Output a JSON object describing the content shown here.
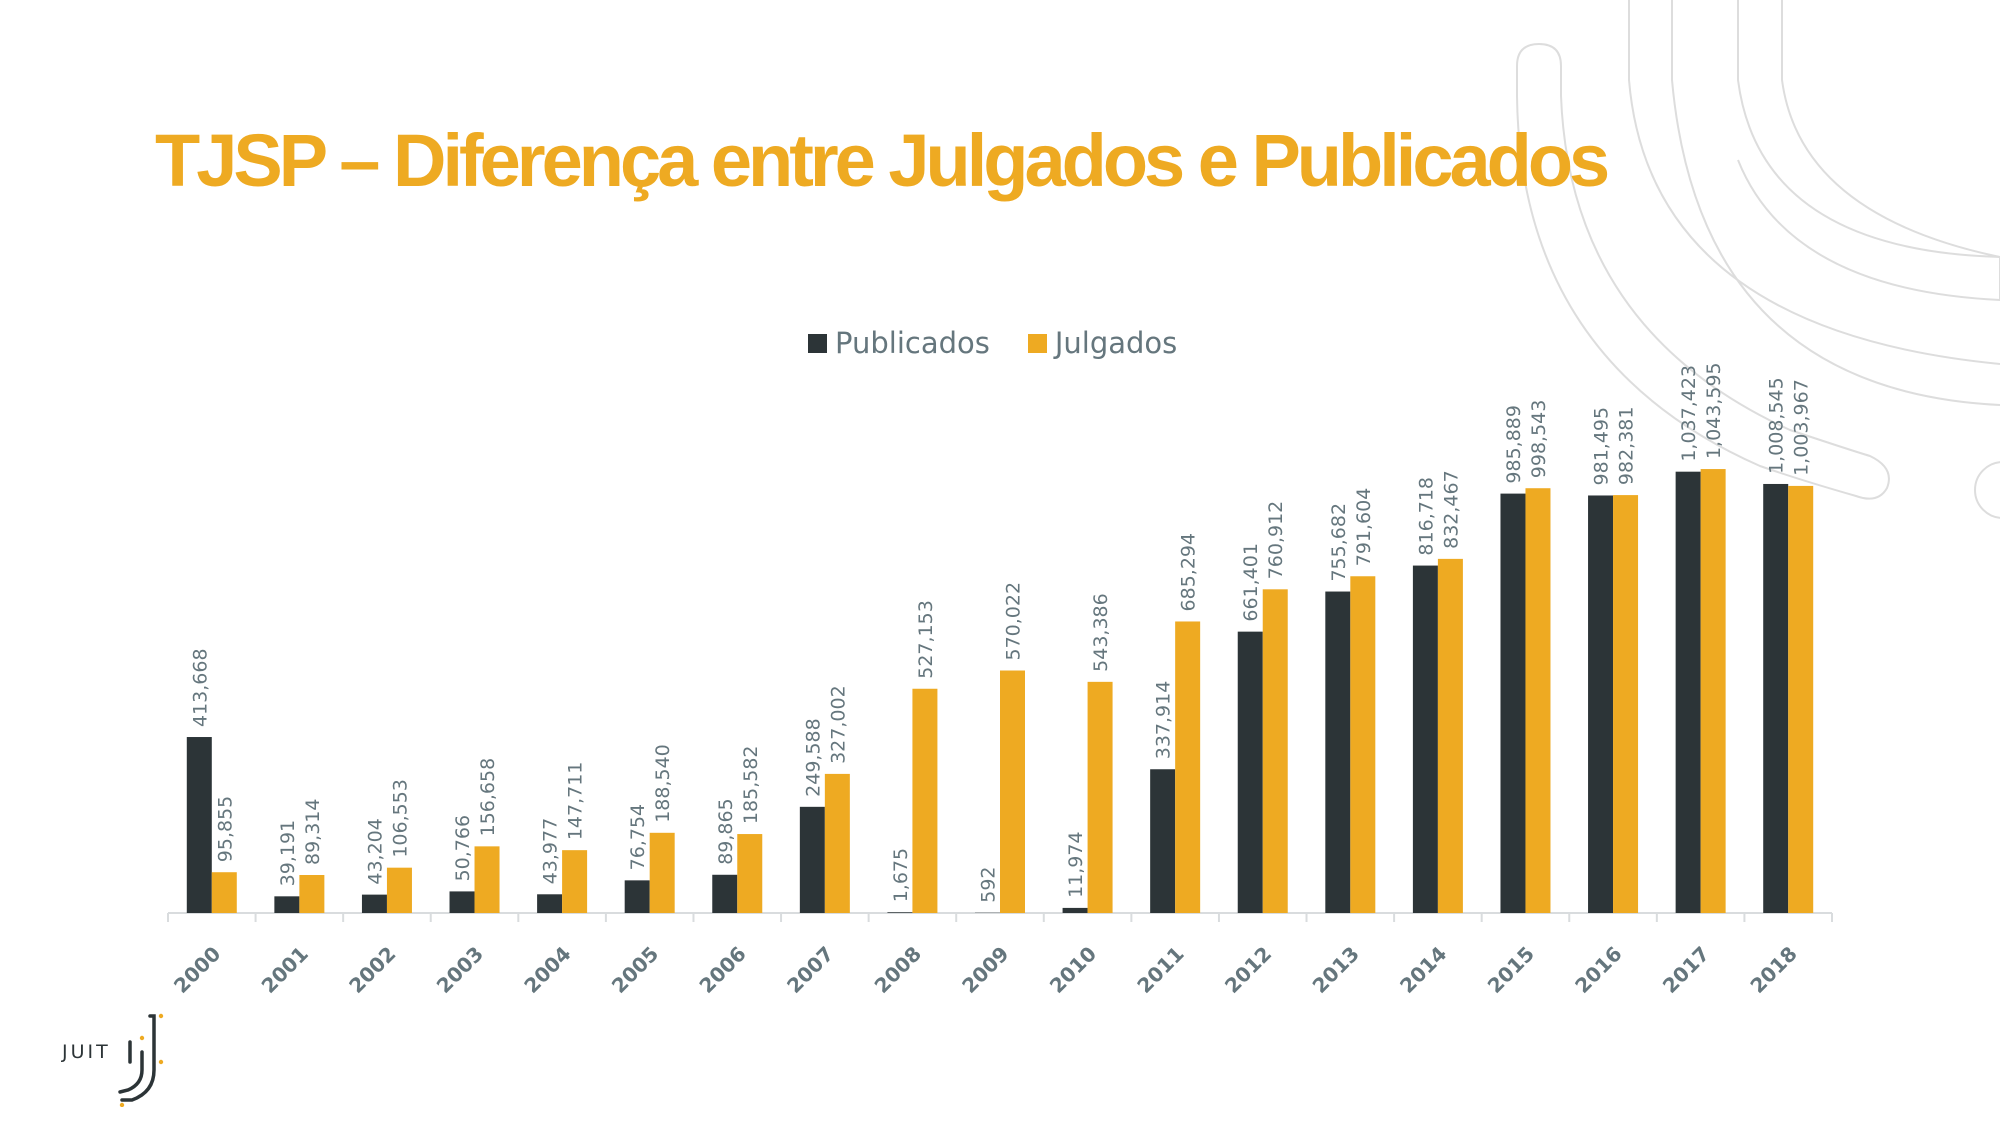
{
  "title": "TJSP – Diferença entre Julgados e Publicados",
  "colors": {
    "accent": "#EEAA22",
    "dark": "#2C3437",
    "label": "#65767D",
    "axis": "#D9DCDE",
    "deco": "#DDDDDD"
  },
  "logo": {
    "text": "JUIT"
  },
  "chart_data": {
    "type": "bar",
    "title": "TJSP – Diferença entre Julgados e Publicados",
    "xlabel": "",
    "ylabel": "",
    "ylim": [
      0,
      1100000
    ],
    "grid": false,
    "legend_position": "top-center",
    "categories": [
      "2000",
      "2001",
      "2002",
      "2003",
      "2004",
      "2005",
      "2006",
      "2007",
      "2008",
      "2009",
      "2010",
      "2011",
      "2012",
      "2013",
      "2014",
      "2015",
      "2016",
      "2017",
      "2018"
    ],
    "series": [
      {
        "name": "Publicados",
        "color": "#2C3437",
        "values": [
          413668,
          39191,
          43204,
          50766,
          43977,
          76754,
          89865,
          249588,
          1675,
          592,
          11974,
          337914,
          661401,
          755682,
          816718,
          985889,
          981495,
          1037423,
          1008545
        ],
        "labels": [
          "413,668",
          "39,191",
          "43,204",
          "50,766",
          "43,977",
          "76,754",
          "89,865",
          "249,588",
          "1,675",
          "592",
          "11,974",
          "337,914",
          "661,401",
          "755,682",
          "816,718",
          "985,889",
          "981,495",
          "1,037,423",
          "1,008,545"
        ]
      },
      {
        "name": "Julgados",
        "color": "#EEAA22",
        "values": [
          95855,
          89314,
          106553,
          156658,
          147711,
          188540,
          185582,
          327002,
          527153,
          570022,
          543386,
          685294,
          760912,
          791604,
          832467,
          998543,
          982381,
          1043595,
          1003967
        ],
        "labels": [
          "95,855",
          "89,314",
          "106,553",
          "156,658",
          "147,711",
          "188,540",
          "185,582",
          "327,002",
          "527,153",
          "570,022",
          "543,386",
          "685,294",
          "760,912",
          "791,604",
          "832,467",
          "998,543",
          "982,381",
          "1,043,595",
          "1,003,967"
        ]
      }
    ]
  }
}
